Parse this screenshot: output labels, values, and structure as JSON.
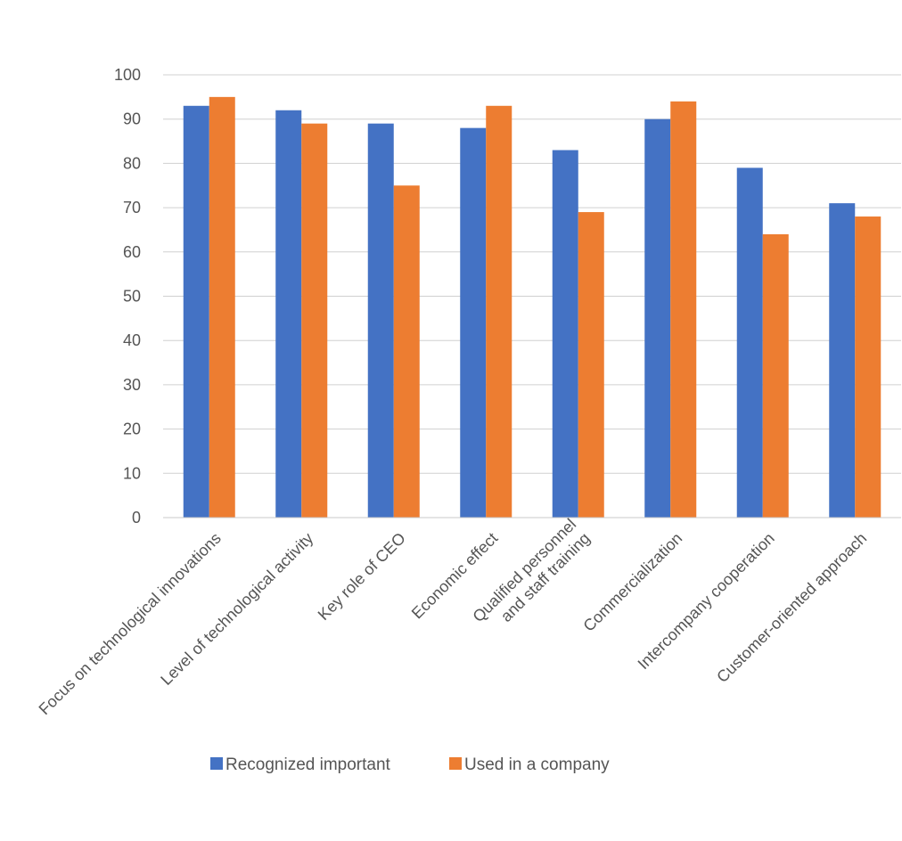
{
  "chart_data": {
    "type": "bar",
    "title": "",
    "xlabel": "",
    "ylabel": "",
    "ylim": [
      0,
      100
    ],
    "yticks": [
      0,
      10,
      20,
      30,
      40,
      50,
      60,
      70,
      80,
      90,
      100
    ],
    "grid": true,
    "legend": "bottom",
    "categories": [
      [
        "Focus on technological innovations"
      ],
      [
        "Level of technological activity"
      ],
      [
        "Key role of CEO"
      ],
      [
        "Economic effect"
      ],
      [
        "Qualified personnel",
        "and staff training"
      ],
      [
        "Commercialization"
      ],
      [
        "Intercompany cooperation"
      ],
      [
        "Customer-oriented approach"
      ]
    ],
    "series": [
      {
        "name": "Recognized important",
        "color": "#4472C4",
        "values": [
          93,
          92,
          89,
          88,
          83,
          90,
          79,
          71
        ]
      },
      {
        "name": "Used in a company",
        "color": "#ED7D31",
        "values": [
          95,
          89,
          75,
          93,
          69,
          94,
          64,
          68
        ]
      }
    ]
  }
}
